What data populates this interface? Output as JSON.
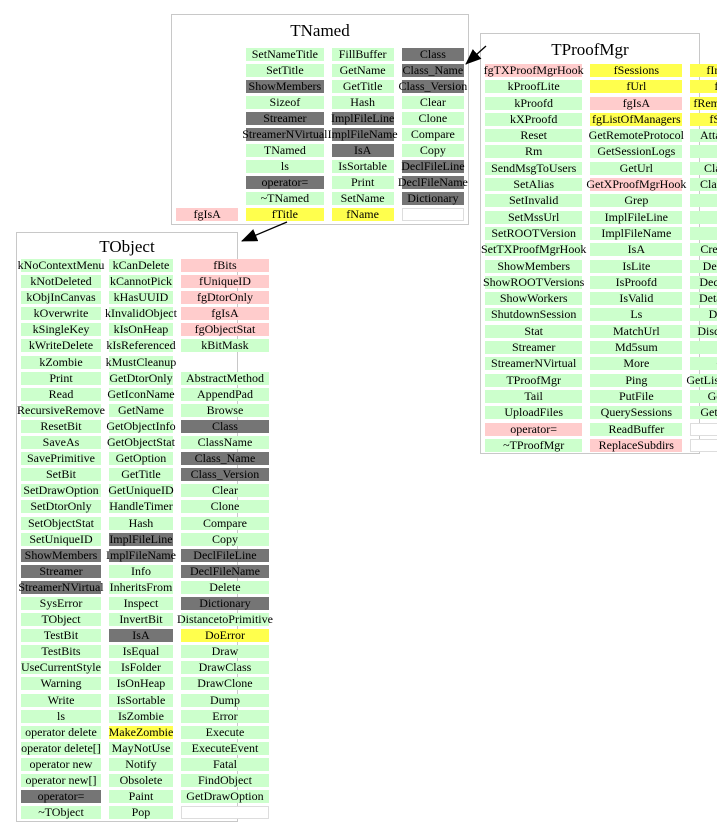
{
  "canvas": {
    "background": "#ffffff"
  },
  "colors": {
    "green": "#ccffcc",
    "yellow": "#ffff4d",
    "pink": "#ffcccc",
    "gray": "#757575",
    "box_border": "#c8c8c8",
    "empty_border": "#dddddd",
    "arrow": "#000000"
  },
  "inheritance": [
    {
      "from": "TNamed",
      "to": "TObject"
    },
    {
      "from": "TProofMgr",
      "to": "TNamed"
    }
  ],
  "classes": [
    {
      "name": "TNamed",
      "columns": [
        [
          [
            "",
            "n"
          ],
          [
            "",
            "n"
          ],
          [
            "",
            "n"
          ],
          [
            "",
            "n"
          ],
          [
            "",
            "n"
          ],
          [
            "",
            "n"
          ],
          [
            "",
            "n"
          ],
          [
            "",
            "n"
          ],
          [
            "",
            "n"
          ],
          [
            "",
            "n"
          ],
          [
            "fgIsA",
            "p"
          ]
        ],
        [
          [
            "SetNameTitle",
            "g"
          ],
          [
            "SetTitle",
            "g"
          ],
          [
            "ShowMembers",
            "d"
          ],
          [
            "Sizeof",
            "g"
          ],
          [
            "Streamer",
            "d"
          ],
          [
            "StreamerNVirtual",
            "d"
          ],
          [
            "TNamed",
            "g"
          ],
          [
            "ls",
            "g"
          ],
          [
            "operator=",
            "d"
          ],
          [
            "~TNamed",
            "g"
          ],
          [
            "fTitle",
            "y"
          ]
        ],
        [
          [
            "FillBuffer",
            "g"
          ],
          [
            "GetName",
            "g"
          ],
          [
            "GetTitle",
            "g"
          ],
          [
            "Hash",
            "g"
          ],
          [
            "ImplFileLine",
            "d"
          ],
          [
            "ImplFileName",
            "d"
          ],
          [
            "IsA",
            "d"
          ],
          [
            "IsSortable",
            "g"
          ],
          [
            "Print",
            "g"
          ],
          [
            "SetName",
            "g"
          ],
          [
            "fName",
            "y"
          ]
        ],
        [
          [
            "Class",
            "d"
          ],
          [
            "Class_Name",
            "d"
          ],
          [
            "Class_Version",
            "d"
          ],
          [
            "Clear",
            "g"
          ],
          [
            "Clone",
            "g"
          ],
          [
            "Compare",
            "g"
          ],
          [
            "Copy",
            "g"
          ],
          [
            "DeclFileLine",
            "d"
          ],
          [
            "DeclFileName",
            "d"
          ],
          [
            "Dictionary",
            "d"
          ],
          [
            "",
            "w"
          ]
        ]
      ]
    },
    {
      "name": "TProofMgr",
      "columns": [
        [
          [
            "fgTXProofMgrHook",
            "p"
          ],
          [
            "kProofLite",
            "g"
          ],
          [
            "kProofd",
            "g"
          ],
          [
            "kXProofd",
            "g"
          ],
          [
            "Reset",
            "g"
          ],
          [
            "Rm",
            "g"
          ],
          [
            "SendMsgToUsers",
            "g"
          ],
          [
            "SetAlias",
            "g"
          ],
          [
            "SetInvalid",
            "g"
          ],
          [
            "SetMssUrl",
            "g"
          ],
          [
            "SetROOTVersion",
            "g"
          ],
          [
            "SetTXProofMgrHook",
            "g"
          ],
          [
            "ShowMembers",
            "g"
          ],
          [
            "ShowROOTVersions",
            "g"
          ],
          [
            "ShowWorkers",
            "g"
          ],
          [
            "ShutdownSession",
            "g"
          ],
          [
            "Stat",
            "g"
          ],
          [
            "Streamer",
            "g"
          ],
          [
            "StreamerNVirtual",
            "g"
          ],
          [
            "TProofMgr",
            "g"
          ],
          [
            "Tail",
            "g"
          ],
          [
            "UploadFiles",
            "g"
          ],
          [
            "operator=",
            "p"
          ],
          [
            "~TProofMgr",
            "g"
          ]
        ],
        [
          [
            "fSessions",
            "y"
          ],
          [
            "fUrl",
            "y"
          ],
          [
            "fgIsA",
            "p"
          ],
          [
            "fgListOfManagers",
            "y"
          ],
          [
            "GetRemoteProtocol",
            "g"
          ],
          [
            "GetSessionLogs",
            "g"
          ],
          [
            "GetUrl",
            "g"
          ],
          [
            "GetXProofMgrHook",
            "p"
          ],
          [
            "Grep",
            "g"
          ],
          [
            "ImplFileLine",
            "g"
          ],
          [
            "ImplFileName",
            "g"
          ],
          [
            "IsA",
            "g"
          ],
          [
            "IsLite",
            "g"
          ],
          [
            "IsProofd",
            "g"
          ],
          [
            "IsValid",
            "g"
          ],
          [
            "Ls",
            "g"
          ],
          [
            "MatchUrl",
            "g"
          ],
          [
            "Md5sum",
            "g"
          ],
          [
            "More",
            "g"
          ],
          [
            "Ping",
            "g"
          ],
          [
            "PutFile",
            "g"
          ],
          [
            "QuerySessions",
            "g"
          ],
          [
            "ReadBuffer",
            "g"
          ],
          [
            "ReplaceSubdirs",
            "p"
          ]
        ],
        [
          [
            "fIntHandler",
            "y"
          ],
          [
            "fMssUrl",
            "y"
          ],
          [
            "fRemoteProtocol",
            "y"
          ],
          [
            "fServType",
            "y"
          ],
          [
            "AttachSession",
            "g"
          ],
          [
            "Class",
            "g"
          ],
          [
            "Class_Name",
            "g"
          ],
          [
            "Class_Version",
            "g"
          ],
          [
            "Close",
            "g"
          ],
          [
            "Cp",
            "g"
          ],
          [
            "Create",
            "g"
          ],
          [
            "CreateSession",
            "g"
          ],
          [
            "DeclFileLine",
            "g"
          ],
          [
            "DeclFileName",
            "g"
          ],
          [
            "DetachSession",
            "g"
          ],
          [
            "Dictionary",
            "g"
          ],
          [
            "DiscardSession",
            "g"
          ],
          [
            "Find",
            "g"
          ],
          [
            "GetFile",
            "g"
          ],
          [
            "GetListOfManagers",
            "g"
          ],
          [
            "GetMssUrl",
            "g"
          ],
          [
            "GetProofDesc",
            "g"
          ],
          [
            "",
            "w"
          ],
          [
            "",
            "w"
          ]
        ]
      ]
    },
    {
      "name": "TObject",
      "columns": [
        [
          [
            "kNoContextMenu",
            "g"
          ],
          [
            "kNotDeleted",
            "g"
          ],
          [
            "kObjInCanvas",
            "g"
          ],
          [
            "kOverwrite",
            "g"
          ],
          [
            "kSingleKey",
            "g"
          ],
          [
            "kWriteDelete",
            "g"
          ],
          [
            "kZombie",
            "g"
          ],
          [
            "Print",
            "g"
          ],
          [
            "Read",
            "g"
          ],
          [
            "RecursiveRemove",
            "g"
          ],
          [
            "ResetBit",
            "g"
          ],
          [
            "SaveAs",
            "g"
          ],
          [
            "SavePrimitive",
            "g"
          ],
          [
            "SetBit",
            "g"
          ],
          [
            "SetDrawOption",
            "g"
          ],
          [
            "SetDtorOnly",
            "g"
          ],
          [
            "SetObjectStat",
            "g"
          ],
          [
            "SetUniqueID",
            "g"
          ],
          [
            "ShowMembers",
            "d"
          ],
          [
            "Streamer",
            "d"
          ],
          [
            "StreamerNVirtual",
            "d"
          ],
          [
            "SysError",
            "g"
          ],
          [
            "TObject",
            "g"
          ],
          [
            "TestBit",
            "g"
          ],
          [
            "TestBits",
            "g"
          ],
          [
            "UseCurrentStyle",
            "g"
          ],
          [
            "Warning",
            "g"
          ],
          [
            "Write",
            "g"
          ],
          [
            "ls",
            "g"
          ],
          [
            "operator delete",
            "g"
          ],
          [
            "operator delete[]",
            "g"
          ],
          [
            "operator new",
            "g"
          ],
          [
            "operator new[]",
            "g"
          ],
          [
            "operator=",
            "d"
          ],
          [
            "~TObject",
            "g"
          ]
        ],
        [
          [
            "kCanDelete",
            "g"
          ],
          [
            "kCannotPick",
            "g"
          ],
          [
            "kHasUUID",
            "g"
          ],
          [
            "kInvalidObject",
            "g"
          ],
          [
            "kIsOnHeap",
            "g"
          ],
          [
            "kIsReferenced",
            "g"
          ],
          [
            "kMustCleanup",
            "g"
          ],
          [
            "GetDtorOnly",
            "g"
          ],
          [
            "GetIconName",
            "g"
          ],
          [
            "GetName",
            "g"
          ],
          [
            "GetObjectInfo",
            "g"
          ],
          [
            "GetObjectStat",
            "g"
          ],
          [
            "GetOption",
            "g"
          ],
          [
            "GetTitle",
            "g"
          ],
          [
            "GetUniqueID",
            "g"
          ],
          [
            "HandleTimer",
            "g"
          ],
          [
            "Hash",
            "g"
          ],
          [
            "ImplFileLine",
            "d"
          ],
          [
            "ImplFileName",
            "d"
          ],
          [
            "Info",
            "g"
          ],
          [
            "InheritsFrom",
            "g"
          ],
          [
            "Inspect",
            "g"
          ],
          [
            "InvertBit",
            "g"
          ],
          [
            "IsA",
            "d"
          ],
          [
            "IsEqual",
            "g"
          ],
          [
            "IsFolder",
            "g"
          ],
          [
            "IsOnHeap",
            "g"
          ],
          [
            "IsSortable",
            "g"
          ],
          [
            "IsZombie",
            "g"
          ],
          [
            "MakeZombie",
            "y"
          ],
          [
            "MayNotUse",
            "g"
          ],
          [
            "Notify",
            "g"
          ],
          [
            "Obsolete",
            "g"
          ],
          [
            "Paint",
            "g"
          ],
          [
            "Pop",
            "g"
          ]
        ],
        [
          [
            "fBits",
            "p"
          ],
          [
            "fUniqueID",
            "p"
          ],
          [
            "fgDtorOnly",
            "p"
          ],
          [
            "fgIsA",
            "p"
          ],
          [
            "fgObjectStat",
            "p"
          ],
          [
            "kBitMask",
            "g"
          ],
          [
            "",
            "n"
          ],
          [
            "AbstractMethod",
            "g"
          ],
          [
            "AppendPad",
            "g"
          ],
          [
            "Browse",
            "g"
          ],
          [
            "Class",
            "d"
          ],
          [
            "ClassName",
            "g"
          ],
          [
            "Class_Name",
            "d"
          ],
          [
            "Class_Version",
            "d"
          ],
          [
            "Clear",
            "g"
          ],
          [
            "Clone",
            "g"
          ],
          [
            "Compare",
            "g"
          ],
          [
            "Copy",
            "g"
          ],
          [
            "DeclFileLine",
            "d"
          ],
          [
            "DeclFileName",
            "d"
          ],
          [
            "Delete",
            "g"
          ],
          [
            "Dictionary",
            "d"
          ],
          [
            "DistancetoPrimitive",
            "g"
          ],
          [
            "DoError",
            "y"
          ],
          [
            "Draw",
            "g"
          ],
          [
            "DrawClass",
            "g"
          ],
          [
            "DrawClone",
            "g"
          ],
          [
            "Dump",
            "g"
          ],
          [
            "Error",
            "g"
          ],
          [
            "Execute",
            "g"
          ],
          [
            "ExecuteEvent",
            "g"
          ],
          [
            "Fatal",
            "g"
          ],
          [
            "FindObject",
            "g"
          ],
          [
            "GetDrawOption",
            "g"
          ],
          [
            "",
            "w"
          ]
        ]
      ]
    }
  ]
}
